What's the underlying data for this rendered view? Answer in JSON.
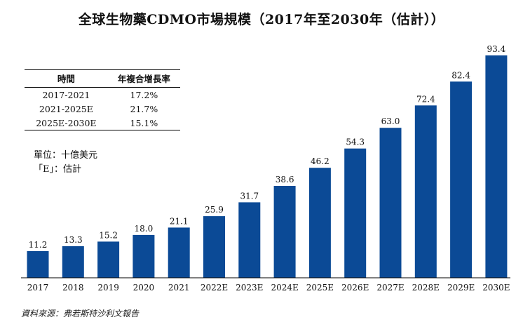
{
  "title": "全球生物藥CDMO市場規模（2017年至2030年（估計））",
  "table": {
    "headers": [
      "時間",
      "年複合增長率"
    ],
    "rows": [
      [
        "2017-2021",
        "17.2%"
      ],
      [
        "2021-2025E",
        "21.7%"
      ],
      [
        "2025E-2030E",
        "15.1%"
      ]
    ]
  },
  "notes": {
    "unit": "單位：十億美元",
    "estimate": "「E」：估計"
  },
  "source": "資料來源：弗若斯特沙利文報告",
  "colors": {
    "bar": "#0b4a96",
    "axis": "#000000"
  },
  "chart_data": {
    "type": "bar",
    "categories": [
      "2017",
      "2018",
      "2019",
      "2020",
      "2021",
      "2022E",
      "2023E",
      "2024E",
      "2025E",
      "2026E",
      "2027E",
      "2028E",
      "2029E",
      "2030E"
    ],
    "values": [
      11.2,
      13.3,
      15.2,
      18.0,
      21.1,
      25.9,
      31.7,
      38.6,
      46.2,
      54.3,
      63.0,
      72.4,
      82.4,
      93.4
    ],
    "value_labels": [
      "11.2",
      "13.3",
      "15.2",
      "18.0",
      "21.1",
      "25.9",
      "31.7",
      "38.6",
      "46.2",
      "54.3",
      "63.0",
      "72.4",
      "82.4",
      "93.4"
    ],
    "title": "全球生物藥CDMO市場規模（2017年至2030年（估計））",
    "xlabel": "",
    "ylabel": "",
    "ylim": [
      0,
      93.4
    ],
    "grid": false,
    "legend": "none",
    "data_labels": true
  }
}
